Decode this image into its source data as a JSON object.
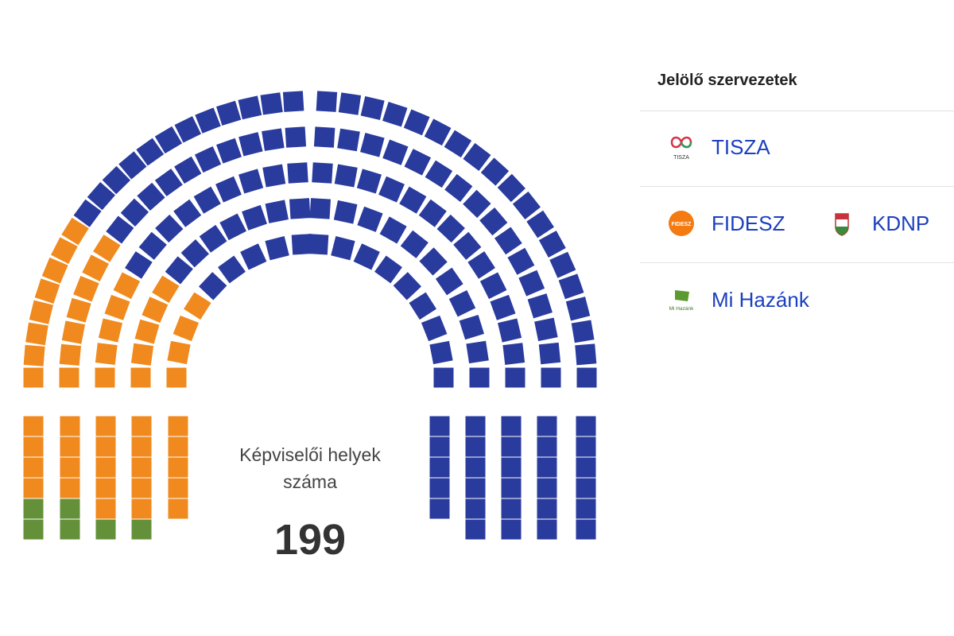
{
  "chart_data": {
    "type": "parliament",
    "total_label": "Képviselői helyek száma",
    "total": 199,
    "series": [
      {
        "name": "TISZA",
        "values": [
          141
        ],
        "color": "#2a3b9e"
      },
      {
        "name": "FIDESZ-KDNP",
        "values": [
          52
        ],
        "color": "#f08a1e"
      },
      {
        "name": "Mi Hazánk",
        "values": [
          6
        ],
        "color": "#64903a"
      }
    ]
  },
  "legend": {
    "title": "Jelölő szervezetek",
    "entries": [
      {
        "name": "TISZA",
        "logo": "tisza-logo",
        "logo_text": "TISZA"
      },
      {
        "name": "FIDESZ",
        "logo": "fidesz-logo",
        "logo_text": "FIDESZ"
      },
      {
        "name": "KDNP",
        "logo": "kdnp-logo"
      },
      {
        "name": "Mi Hazánk",
        "logo": "mi-hazank-logo",
        "logo_text": "Mi Hazánk"
      }
    ]
  }
}
